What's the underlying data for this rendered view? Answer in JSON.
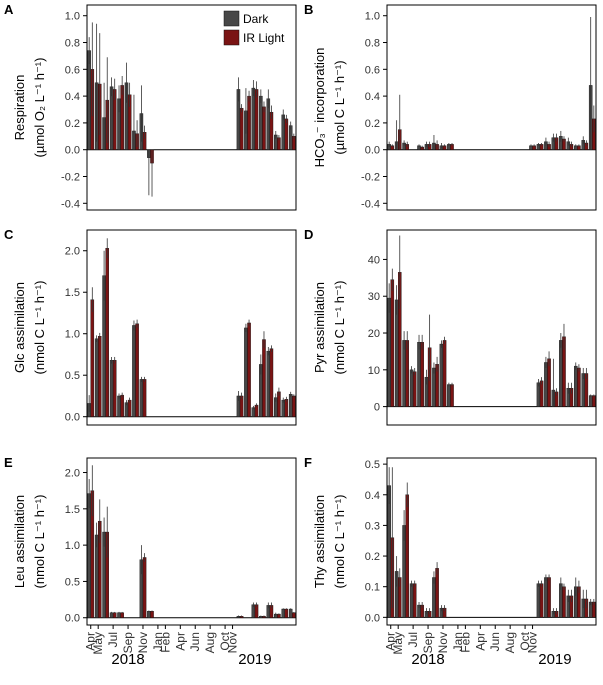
{
  "colors": {
    "dark": "#474747",
    "ir": "#7a1414",
    "axis": "#000000",
    "tick_text": "#333333"
  },
  "legend": {
    "dark_label": "Dark",
    "ir_label": "IR Light"
  },
  "x_axis": {
    "month_labels": [
      "Apr",
      "May",
      "Jul",
      "Sep",
      "Nov",
      "Jan",
      "Feb",
      "Apr",
      "Jun",
      "Aug",
      "Oct",
      "Nov"
    ],
    "year_labels": [
      "2018",
      "2019"
    ]
  },
  "chart_data": [
    {
      "panel": "A",
      "type": "bar",
      "ylabel": [
        "Respiration",
        "(µmol O₂ L⁻¹ h⁻¹)"
      ],
      "ylim": [
        -0.45,
        1.08
      ],
      "yticks": [
        -0.4,
        -0.2,
        0.0,
        0.2,
        0.4,
        0.6,
        0.8,
        1.0
      ],
      "tick_format": "0.0",
      "legend": true,
      "points": [
        {
          "x": 0,
          "d": 0.74,
          "i": 0.6,
          "de": 0.1,
          "ie": 0.35
        },
        {
          "x": 1,
          "d": 0.5,
          "i": 0.49,
          "de": 0.44,
          "ie": 0.38
        },
        {
          "x": 2,
          "d": 0.24,
          "i": 0.37,
          "de": 0.26,
          "ie": 0.32
        },
        {
          "x": 3,
          "d": 0.47,
          "i": 0.45,
          "de": 0.07,
          "ie": 0.08
        },
        {
          "x": 4,
          "d": 0.38,
          "i": 0.48,
          "de": 0.1,
          "ie": 0.07
        },
        {
          "x": 5,
          "d": 0.5,
          "i": 0.41,
          "de": 0.15,
          "ie": 0.09
        },
        {
          "x": 6,
          "d": 0.14,
          "i": 0.12,
          "de": 0.27,
          "ie": 0.1
        },
        {
          "x": 7,
          "d": 0.27,
          "i": 0.13,
          "de": 0.21,
          "ie": 0.05
        },
        {
          "x": 8,
          "d": -0.06,
          "i": -0.1,
          "de": 0.28,
          "ie": 0.25
        },
        {
          "x": 20,
          "d": 0.45,
          "i": 0.31,
          "de": 0.09,
          "ie": 0.03
        },
        {
          "x": 21,
          "d": 0.29,
          "i": 0.4,
          "de": 0.17,
          "ie": 0.04
        },
        {
          "x": 22,
          "d": 0.46,
          "i": 0.45,
          "de": 0.06,
          "ie": 0.06
        },
        {
          "x": 23,
          "d": 0.4,
          "i": 0.32,
          "de": 0.05,
          "ie": 0.04
        },
        {
          "x": 24,
          "d": 0.38,
          "i": 0.28,
          "de": 0.07,
          "ie": 0.05
        },
        {
          "x": 25,
          "d": 0.11,
          "i": 0.09,
          "de": 0.03,
          "ie": 0.02
        },
        {
          "x": 26,
          "d": 0.26,
          "i": 0.23,
          "de": 0.04,
          "ie": 0.03
        },
        {
          "x": 27,
          "d": 0.18,
          "i": 0.1,
          "de": 0.03,
          "ie": 0.02
        }
      ]
    },
    {
      "panel": "B",
      "type": "bar",
      "ylabel": [
        "HCO₃⁻ incorporation",
        "(µmol C L⁻¹ h⁻¹)"
      ],
      "ylim": [
        -0.45,
        1.08
      ],
      "yticks": [
        -0.4,
        -0.2,
        0.0,
        0.2,
        0.4,
        0.6,
        0.8,
        1.0
      ],
      "tick_format": "0.0",
      "legend": false,
      "points": [
        {
          "x": 0,
          "d": 0.04,
          "i": 0.03,
          "de": 0.02,
          "ie": 0.01
        },
        {
          "x": 1,
          "d": 0.06,
          "i": 0.15,
          "de": 0.16,
          "ie": 0.26
        },
        {
          "x": 2,
          "d": 0.05,
          "i": 0.04,
          "de": 0.02,
          "ie": 0.02
        },
        {
          "x": 4,
          "d": 0.03,
          "i": 0.02,
          "de": 0.01,
          "ie": 0.01
        },
        {
          "x": 5,
          "d": 0.04,
          "i": 0.04,
          "de": 0.02,
          "ie": 0.02
        },
        {
          "x": 6,
          "d": 0.05,
          "i": 0.04,
          "de": 0.06,
          "ie": 0.03
        },
        {
          "x": 7,
          "d": 0.03,
          "i": 0.03,
          "de": 0.02,
          "ie": 0.01
        },
        {
          "x": 8,
          "d": 0.04,
          "i": 0.04,
          "de": 0.01,
          "ie": 0.01
        },
        {
          "x": 19,
          "d": 0.03,
          "i": 0.03,
          "de": 0.01,
          "ie": 0.01
        },
        {
          "x": 20,
          "d": 0.04,
          "i": 0.04,
          "de": 0.01,
          "ie": 0.01
        },
        {
          "x": 21,
          "d": 0.06,
          "i": 0.04,
          "de": 0.03,
          "ie": 0.02
        },
        {
          "x": 22,
          "d": 0.09,
          "i": 0.09,
          "de": 0.03,
          "ie": 0.03
        },
        {
          "x": 23,
          "d": 0.1,
          "i": 0.08,
          "de": 0.04,
          "ie": 0.02
        },
        {
          "x": 24,
          "d": 0.06,
          "i": 0.04,
          "de": 0.03,
          "ie": 0.02
        },
        {
          "x": 25,
          "d": 0.03,
          "i": 0.03,
          "de": 0.01,
          "ie": 0.01
        },
        {
          "x": 26,
          "d": 0.07,
          "i": 0.05,
          "de": 0.03,
          "ie": 0.02
        },
        {
          "x": 27,
          "d": 0.48,
          "i": 0.23,
          "de": 0.51,
          "ie": 0.1
        }
      ]
    },
    {
      "panel": "C",
      "type": "bar",
      "ylabel": [
        "Glc assimilation",
        "(nmol C L⁻¹ h⁻¹)"
      ],
      "ylim": [
        -0.1,
        2.25
      ],
      "yticks": [
        0.0,
        0.5,
        1.0,
        1.5,
        2.0
      ],
      "tick_format": "0.0",
      "legend": false,
      "points": [
        {
          "x": 0,
          "d": 0.16,
          "i": 1.41,
          "de": 0.1,
          "ie": 0.15
        },
        {
          "x": 1,
          "d": 0.94,
          "i": 0.97,
          "de": 0.04,
          "ie": 0.04
        },
        {
          "x": 2,
          "d": 1.7,
          "i": 2.03,
          "de": 0.3,
          "ie": 0.12
        },
        {
          "x": 3,
          "d": 0.68,
          "i": 0.68,
          "de": 0.04,
          "ie": 0.04
        },
        {
          "x": 4,
          "d": 0.25,
          "i": 0.26,
          "de": 0.03,
          "ie": 0.03
        },
        {
          "x": 5,
          "d": 0.17,
          "i": 0.2,
          "de": 0.03,
          "ie": 0.03
        },
        {
          "x": 6,
          "d": 1.1,
          "i": 1.12,
          "de": 0.06,
          "ie": 0.05
        },
        {
          "x": 7,
          "d": 0.45,
          "i": 0.45,
          "de": 0.03,
          "ie": 0.03
        },
        {
          "x": 20,
          "d": 0.25,
          "i": 0.25,
          "de": 0.06,
          "ie": 0.04
        },
        {
          "x": 21,
          "d": 1.07,
          "i": 1.13,
          "de": 0.05,
          "ie": 0.04
        },
        {
          "x": 22,
          "d": 0.11,
          "i": 0.14,
          "de": 0.02,
          "ie": 0.02
        },
        {
          "x": 23,
          "d": 0.63,
          "i": 0.93,
          "de": 0.12,
          "ie": 0.1
        },
        {
          "x": 24,
          "d": 0.79,
          "i": 0.82,
          "de": 0.05,
          "ie": 0.04
        },
        {
          "x": 25,
          "d": 0.23,
          "i": 0.3,
          "de": 0.05,
          "ie": 0.05
        },
        {
          "x": 26,
          "d": 0.2,
          "i": 0.21,
          "de": 0.03,
          "ie": 0.03
        },
        {
          "x": 27,
          "d": 0.27,
          "i": 0.25,
          "de": 0.03,
          "ie": 0.02
        }
      ]
    },
    {
      "panel": "D",
      "type": "bar",
      "ylabel": [
        "Pyr assimilation",
        "(nmol C L⁻¹ h⁻¹)"
      ],
      "ylim": [
        -5,
        48
      ],
      "yticks": [
        0,
        10,
        20,
        30,
        40
      ],
      "tick_format": "0",
      "legend": false,
      "points": [
        {
          "x": 0,
          "d": 29.5,
          "i": 34.5,
          "de": 4.0,
          "ie": 3.0
        },
        {
          "x": 1,
          "d": 29.0,
          "i": 36.5,
          "de": 4.0,
          "ie": 10.0
        },
        {
          "x": 2,
          "d": 18.0,
          "i": 18.0,
          "de": 2.5,
          "ie": 2.5
        },
        {
          "x": 3,
          "d": 10.0,
          "i": 9.5,
          "de": 1.0,
          "ie": 1.0
        },
        {
          "x": 4,
          "d": 17.5,
          "i": 17.5,
          "de": 2.0,
          "ie": 2.0
        },
        {
          "x": 5,
          "d": 8.0,
          "i": 16.0,
          "de": 2.0,
          "ie": 9.0
        },
        {
          "x": 6,
          "d": 10.5,
          "i": 11.5,
          "de": 1.5,
          "ie": 2.0
        },
        {
          "x": 7,
          "d": 17.0,
          "i": 18.0,
          "de": 1.0,
          "ie": 1.0
        },
        {
          "x": 8,
          "d": 6.0,
          "i": 6.0,
          "de": 0.5,
          "ie": 0.5
        },
        {
          "x": 20,
          "d": 6.5,
          "i": 7.0,
          "de": 1.0,
          "ie": 1.0
        },
        {
          "x": 21,
          "d": 12.0,
          "i": 13.0,
          "de": 1.5,
          "ie": 2.0
        },
        {
          "x": 22,
          "d": 4.5,
          "i": 4.0,
          "de": 8.5,
          "ie": 1.0
        },
        {
          "x": 23,
          "d": 18.0,
          "i": 19.0,
          "de": 2.0,
          "ie": 3.5
        },
        {
          "x": 24,
          "d": 5.0,
          "i": 5.0,
          "de": 1.5,
          "ie": 1.5
        },
        {
          "x": 25,
          "d": 11.0,
          "i": 10.5,
          "de": 1.0,
          "ie": 1.0
        },
        {
          "x": 26,
          "d": 9.0,
          "i": 9.0,
          "de": 1.5,
          "ie": 1.5
        },
        {
          "x": 27,
          "d": 3.0,
          "i": 3.0,
          "de": 0.3,
          "ie": 0.3
        }
      ]
    },
    {
      "panel": "E",
      "type": "bar",
      "ylabel": [
        "Leu assimilation",
        "(nmol C L⁻¹ h⁻¹)"
      ],
      "ylim": [
        -0.1,
        2.2
      ],
      "yticks": [
        0.0,
        0.5,
        1.0,
        1.5,
        2.0
      ],
      "tick_format": "0.0",
      "legend": false,
      "points": [
        {
          "x": 0,
          "d": 1.71,
          "i": 1.75,
          "de": 0.2,
          "ie": 0.35
        },
        {
          "x": 1,
          "d": 1.14,
          "i": 1.33,
          "de": 0.17,
          "ie": 0.3
        },
        {
          "x": 2,
          "d": 1.18,
          "i": 1.18,
          "de": 0.2,
          "ie": 0.35
        },
        {
          "x": 3,
          "d": 0.07,
          "i": 0.07,
          "de": 0.01,
          "ie": 0.01
        },
        {
          "x": 4,
          "d": 0.07,
          "i": 0.07,
          "de": 0.01,
          "ie": 0.01
        },
        {
          "x": 7,
          "d": 0.8,
          "i": 0.83,
          "de": 0.2,
          "ie": 0.06
        },
        {
          "x": 8,
          "d": 0.09,
          "i": 0.09,
          "de": 0.01,
          "ie": 0.01
        },
        {
          "x": 20,
          "d": 0.02,
          "i": 0.02,
          "de": 0.01,
          "ie": 0.01
        },
        {
          "x": 22,
          "d": 0.18,
          "i": 0.18,
          "de": 0.03,
          "ie": 0.03
        },
        {
          "x": 23,
          "d": 0.02,
          "i": 0.02,
          "de": 0.01,
          "ie": 0.01
        },
        {
          "x": 24,
          "d": 0.17,
          "i": 0.17,
          "de": 0.04,
          "ie": 0.04
        },
        {
          "x": 25,
          "d": 0.05,
          "i": 0.05,
          "de": 0.02,
          "ie": 0.01
        },
        {
          "x": 26,
          "d": 0.12,
          "i": 0.12,
          "de": 0.01,
          "ie": 0.01
        },
        {
          "x": 27,
          "d": 0.12,
          "i": 0.07,
          "de": 0.01,
          "ie": 0.01
        }
      ]
    },
    {
      "panel": "F",
      "type": "bar",
      "ylabel": [
        "Thy assimilation",
        "(nmol C L⁻¹ h⁻¹)"
      ],
      "ylim": [
        -0.025,
        0.52
      ],
      "yticks": [
        0.0,
        0.1,
        0.2,
        0.3,
        0.4,
        0.5
      ],
      "tick_format": "0.0",
      "legend": false,
      "points": [
        {
          "x": 0,
          "d": 0.43,
          "i": 0.26,
          "de": 0.06,
          "ie": 0.23
        },
        {
          "x": 1,
          "d": 0.15,
          "i": 0.13,
          "de": 0.05,
          "ie": 0.03
        },
        {
          "x": 2,
          "d": 0.3,
          "i": 0.4,
          "de": 0.05,
          "ie": 0.04
        },
        {
          "x": 3,
          "d": 0.11,
          "i": 0.11,
          "de": 0.01,
          "ie": 0.01
        },
        {
          "x": 4,
          "d": 0.04,
          "i": 0.04,
          "de": 0.01,
          "ie": 0.01
        },
        {
          "x": 5,
          "d": 0.02,
          "i": 0.02,
          "de": 0.01,
          "ie": 0.01
        },
        {
          "x": 6,
          "d": 0.13,
          "i": 0.16,
          "de": 0.02,
          "ie": 0.02
        },
        {
          "x": 7,
          "d": 0.03,
          "i": 0.03,
          "de": 0.01,
          "ie": 0.01
        },
        {
          "x": 20,
          "d": 0.11,
          "i": 0.11,
          "de": 0.01,
          "ie": 0.01
        },
        {
          "x": 21,
          "d": 0.13,
          "i": 0.13,
          "de": 0.01,
          "ie": 0.01
        },
        {
          "x": 22,
          "d": 0.02,
          "i": 0.02,
          "de": 0.01,
          "ie": 0.01
        },
        {
          "x": 23,
          "d": 0.11,
          "i": 0.1,
          "de": 0.02,
          "ie": 0.01
        },
        {
          "x": 24,
          "d": 0.07,
          "i": 0.07,
          "de": 0.02,
          "ie": 0.02
        },
        {
          "x": 25,
          "d": 0.1,
          "i": 0.1,
          "de": 0.03,
          "ie": 0.02
        },
        {
          "x": 26,
          "d": 0.06,
          "i": 0.06,
          "de": 0.03,
          "ie": 0.03
        },
        {
          "x": 27,
          "d": 0.05,
          "i": 0.05,
          "de": 0.01,
          "ie": 0.01
        }
      ]
    }
  ]
}
